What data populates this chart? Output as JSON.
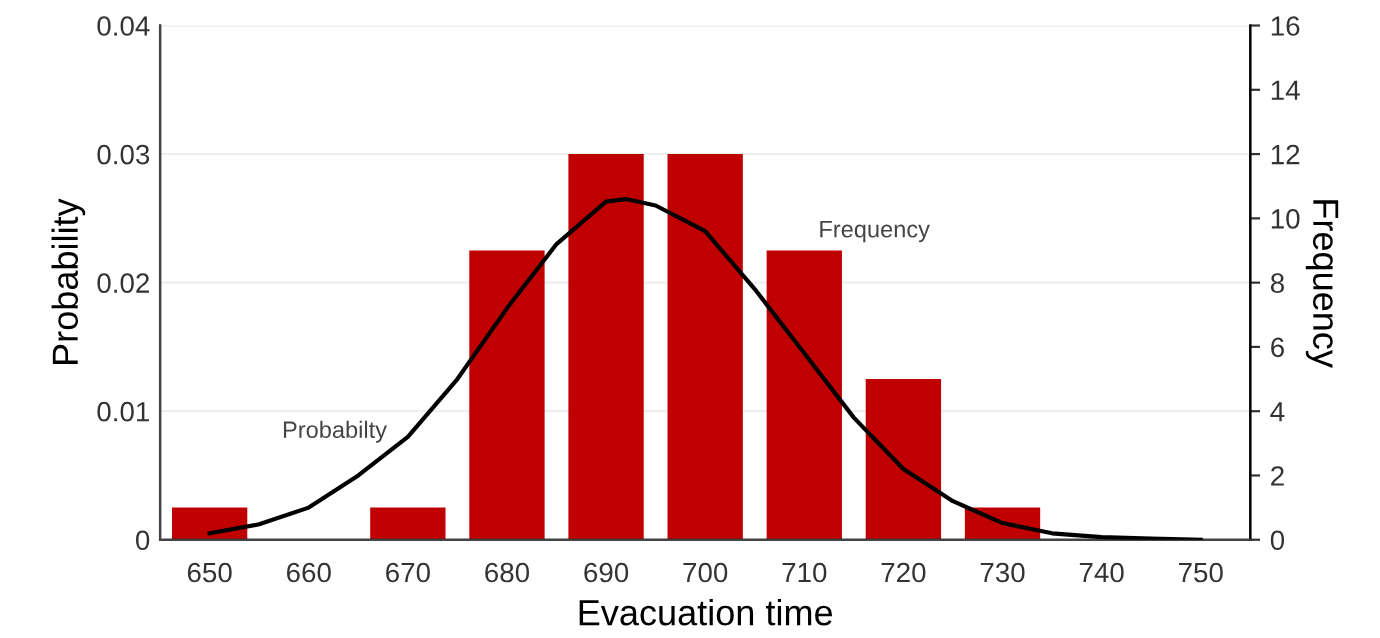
{
  "chart_data": {
    "type": "bar",
    "xlabel": "Evacuation time",
    "ylabel": "Probability",
    "y2label": "Frequency",
    "x": [
      650,
      660,
      670,
      680,
      690,
      700,
      710,
      720,
      730
    ],
    "series": [
      {
        "axis": "y2",
        "color": "#c00000",
        "values": [
          1,
          0,
          1,
          9,
          12,
          12,
          9,
          5,
          1
        ]
      },
      {
        "type": "line",
        "axis": "y",
        "color": "#000000",
        "x": [
          650,
          655,
          660,
          665,
          670,
          675,
          680,
          685,
          690,
          692,
          695,
          700,
          705,
          710,
          715,
          720,
          725,
          730,
          735,
          740,
          745,
          750
        ],
        "values": [
          0.0005,
          0.0012,
          0.0025,
          0.005,
          0.008,
          0.0125,
          0.018,
          0.023,
          0.0263,
          0.0265,
          0.026,
          0.024,
          0.0195,
          0.0145,
          0.0095,
          0.0055,
          0.003,
          0.0013,
          0.0005,
          0.0002,
          0.0001,
          0
        ]
      }
    ],
    "xlim": [
      645,
      755
    ],
    "xticks": [
      650,
      660,
      670,
      680,
      690,
      700,
      710,
      720,
      730,
      740,
      750
    ],
    "ylim": [
      0,
      0.04
    ],
    "yticks": [
      {
        "value": 0,
        "label": "0"
      },
      0.01,
      0.02,
      0.03,
      0.04
    ],
    "y2lim": [
      0,
      16
    ],
    "y2ticks": [
      0,
      2,
      4,
      6,
      8,
      10,
      12,
      14,
      16
    ],
    "grid": "y",
    "marker": "none",
    "line_style": "solid",
    "annotations": [
      "Probabilty",
      "Frequency"
    ]
  }
}
